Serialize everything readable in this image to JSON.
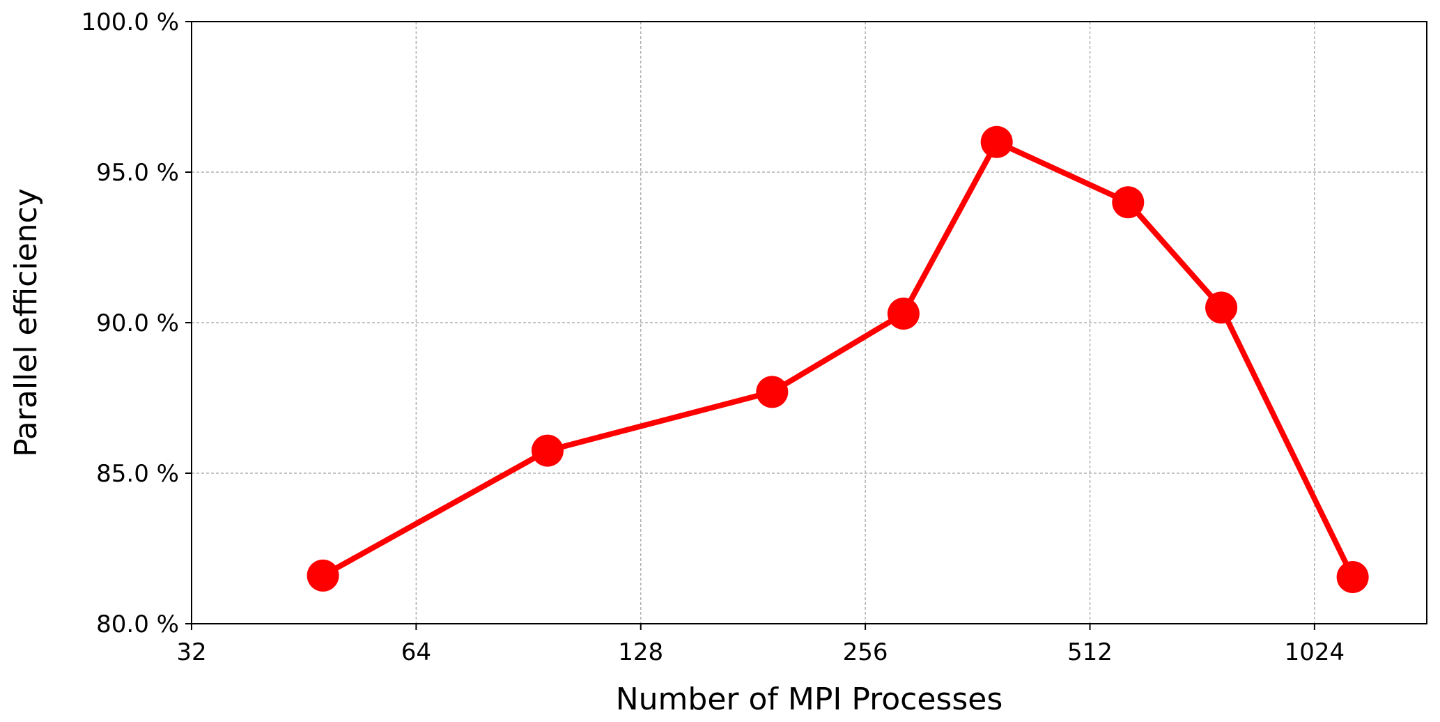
{
  "chart_data": {
    "type": "line",
    "title": "",
    "xlabel": "Number of MPI Processes",
    "ylabel": "Parallel efficiency",
    "x_scale": "log2",
    "xlim": [
      32,
      1448
    ],
    "ylim": [
      80.0,
      100.0
    ],
    "xticks": [
      {
        "value": 32,
        "label": "32"
      },
      {
        "value": 64,
        "label": "64"
      },
      {
        "value": 128,
        "label": "128"
      },
      {
        "value": 256,
        "label": "256"
      },
      {
        "value": 512,
        "label": "512"
      },
      {
        "value": 1024,
        "label": "1024"
      }
    ],
    "yticks": [
      {
        "value": 80.0,
        "label": "80.0 %"
      },
      {
        "value": 85.0,
        "label": "85.0 %"
      },
      {
        "value": 90.0,
        "label": "90.0 %"
      },
      {
        "value": 95.0,
        "label": "95.0 %"
      },
      {
        "value": 100.0,
        "label": "100.0 %"
      }
    ],
    "grid": true,
    "legend": "none",
    "series": [
      {
        "color": "#ff0000",
        "marker": "circle",
        "x": [
          48,
          96,
          192,
          288,
          384,
          576,
          768,
          1152
        ],
        "y": [
          81.6,
          85.75,
          87.7,
          90.3,
          96.0,
          94.0,
          90.5,
          81.55
        ]
      }
    ]
  }
}
